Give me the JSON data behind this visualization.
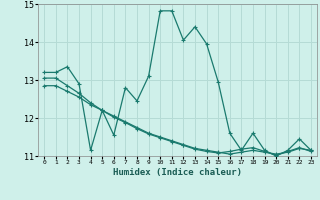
{
  "xlabel": "Humidex (Indice chaleur)",
  "xlim": [
    -0.5,
    23.5
  ],
  "ylim": [
    11,
    15
  ],
  "yticks": [
    11,
    12,
    13,
    14,
    15
  ],
  "xticks": [
    0,
    1,
    2,
    3,
    4,
    5,
    6,
    7,
    8,
    9,
    10,
    11,
    12,
    13,
    14,
    15,
    16,
    17,
    18,
    19,
    20,
    21,
    22,
    23
  ],
  "background_color": "#cff0ea",
  "grid_color": "#b5dbd5",
  "line_color": "#1a7a6e",
  "line1_y": [
    13.2,
    13.2,
    13.35,
    12.9,
    11.15,
    12.2,
    11.55,
    12.8,
    12.45,
    13.1,
    14.82,
    14.82,
    14.05,
    14.4,
    13.95,
    12.95,
    11.6,
    11.15,
    11.6,
    11.15,
    11.0,
    11.15,
    11.45,
    11.15
  ],
  "line2_y": [
    12.85,
    12.85,
    12.7,
    12.55,
    12.35,
    12.2,
    12.05,
    11.9,
    11.75,
    11.6,
    11.5,
    11.4,
    11.3,
    11.2,
    11.15,
    11.1,
    11.05,
    11.1,
    11.15,
    11.1,
    11.05,
    11.1,
    11.2,
    11.15
  ],
  "line3_y": [
    13.05,
    13.05,
    12.85,
    12.65,
    12.4,
    12.2,
    12.02,
    11.88,
    11.72,
    11.58,
    11.48,
    11.38,
    11.28,
    11.18,
    11.12,
    11.08,
    11.12,
    11.18,
    11.22,
    11.12,
    11.02,
    11.12,
    11.22,
    11.12
  ]
}
